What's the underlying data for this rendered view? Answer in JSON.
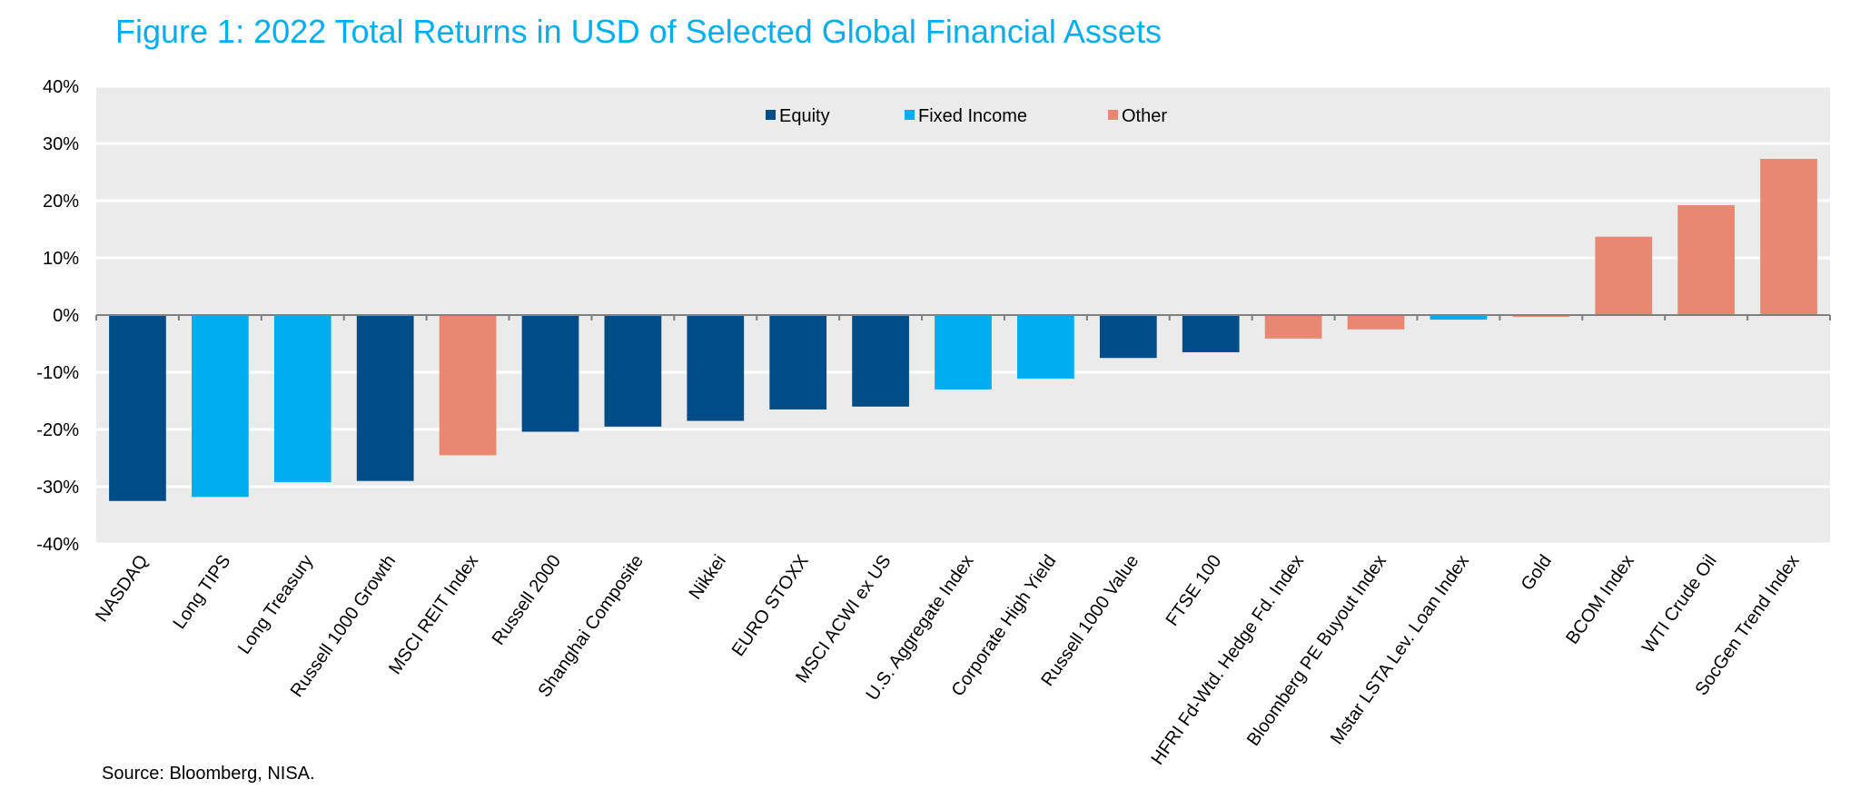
{
  "chart_data": {
    "type": "bar",
    "title": "Figure 1: 2022 Total Returns in USD of Selected Global Financial Assets",
    "source": "Source: Bloomberg, NISA.",
    "xlabel": "",
    "ylabel": "",
    "ylim": [
      -40,
      40
    ],
    "yticks": [
      40,
      30,
      20,
      10,
      0,
      -10,
      -20,
      -30,
      -40
    ],
    "ytick_labels": [
      "40%",
      "30%",
      "20%",
      "10%",
      "0%",
      "-10%",
      "-20%",
      "-30%",
      "-40%"
    ],
    "grid": true,
    "legend_position": "top-center",
    "legend": [
      {
        "name": "Equity",
        "color": "#004C87"
      },
      {
        "name": "Fixed Income",
        "color": "#00AEEF"
      },
      {
        "name": "Other",
        "color": "#E98872"
      }
    ],
    "categories": [
      "NASDAQ",
      "Long TIPS",
      "Long Treasury",
      "Russell 1000 Growth",
      "MSCI REIT Index",
      "Russell 2000",
      "Shanghai Composite",
      "Nikkei",
      "EURO STOXX",
      "MSCI ACWI ex US",
      "U.S. Aggregate Index",
      "Corporate High Yield",
      "Russell 1000 Value",
      "FTSE 100",
      "HFRI Fd-Wtd. Hedge Fd. Index",
      "Bloomberg PE Buyout Index",
      "Mstar LSTA Lev. Loan Index",
      "Gold",
      "BCOM Index",
      "WTI Crude Oil",
      "SocGen Trend Index"
    ],
    "values": [
      -32.5,
      -31.8,
      -29.2,
      -29.0,
      -24.5,
      -20.4,
      -19.5,
      -18.5,
      -16.5,
      -16.0,
      -13.0,
      -11.1,
      -7.5,
      -6.5,
      -4.1,
      -2.5,
      -0.8,
      -0.3,
      13.7,
      19.2,
      27.3
    ],
    "groups": [
      "Equity",
      "Fixed Income",
      "Fixed Income",
      "Equity",
      "Other",
      "Equity",
      "Equity",
      "Equity",
      "Equity",
      "Equity",
      "Fixed Income",
      "Fixed Income",
      "Equity",
      "Equity",
      "Other",
      "Other",
      "Fixed Income",
      "Other",
      "Other",
      "Other",
      "Other"
    ]
  }
}
